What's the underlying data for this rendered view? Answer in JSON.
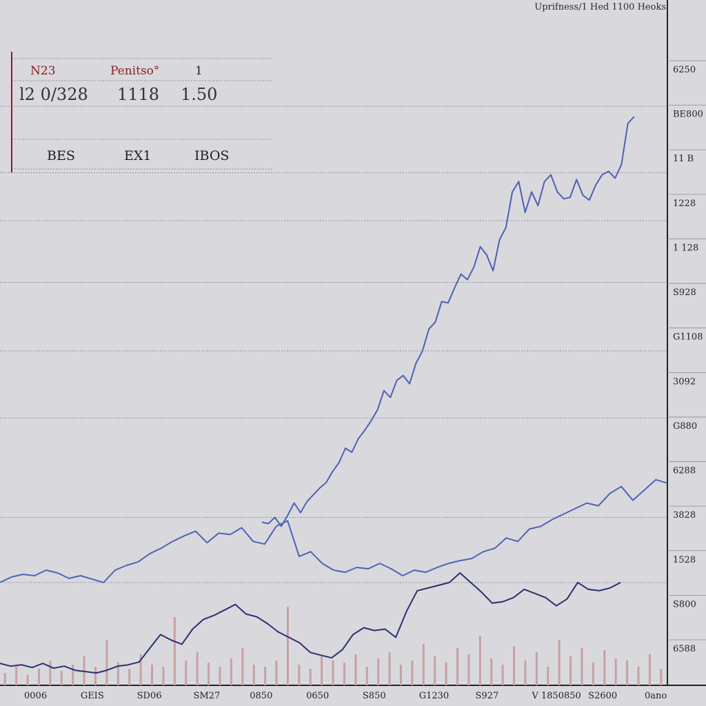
{
  "title": "Uprifness/1 Hed 1100 Heoks",
  "info_panel": {
    "row1": [
      "N23",
      "Penitso°",
      "1"
    ],
    "row2": [
      "l2 0/328",
      "1118",
      "1.50"
    ],
    "row3": [
      "BES",
      "EX1",
      "IBOS"
    ]
  },
  "colors": {
    "background": "#d9d8dd",
    "line_upper": "#4a61b4",
    "line_middle": "#4d63b5",
    "line_lower": "#28306f",
    "volume": "#c9a0a0",
    "red_accent": "#8a1e22"
  },
  "chart_data": {
    "type": "line",
    "title": "Uprifness/1 Hed 1100 Heoks",
    "xlabel": "",
    "ylabel": "",
    "x_ticks": [
      "0006",
      "GEIS",
      "SD06",
      "SM27",
      "0850",
      "0650",
      "S850",
      "G1230",
      "S927",
      "V 1850850",
      "S2600",
      "0ano"
    ],
    "y_ticks": [
      "6250",
      "BE800",
      "11 B",
      "1228",
      "1 128",
      "S928",
      "G1108",
      "3092",
      "G880",
      "6288",
      "3828",
      "1528",
      "S800",
      "6588"
    ],
    "grid": true,
    "series": [
      {
        "values": [
          238,
          236,
          245,
          232,
          248,
          266,
          252,
          268,
          278,
          288,
          296,
          312,
          325,
          346,
          340,
          360,
          372,
          386,
          402,
          430,
          420,
          445,
          452,
          440,
          470,
          488,
          520,
          530,
          560,
          558,
          580,
          600,
          592,
          610,
          640,
          628,
          605,
          650,
          668,
          720,
          735,
          690,
          720,
          700,
          735,
          745,
          720,
          710,
          712,
          738,
          715,
          708,
          730,
          745,
          750,
          740,
          760,
          820,
          830
        ]
      },
      {
        "values": [
          150,
          158,
          162,
          160,
          168,
          164,
          156,
          160,
          155,
          150,
          168,
          175,
          180,
          192,
          200,
          210,
          218,
          225,
          208,
          222,
          220,
          230,
          210,
          206,
          232,
          240,
          188,
          195,
          178,
          168,
          165,
          172,
          170,
          178,
          170,
          160,
          168,
          165,
          172,
          178,
          182,
          185,
          195,
          200,
          215,
          210,
          228,
          232,
          242,
          250,
          258,
          266,
          262,
          280,
          290,
          270,
          285,
          300,
          295
        ]
      },
      {
        "values": [
          32,
          28,
          30,
          26,
          32,
          25,
          28,
          22,
          20,
          18,
          22,
          28,
          30,
          34,
          54,
          74,
          66,
          60,
          82,
          96,
          102,
          110,
          118,
          104,
          100,
          90,
          78,
          70,
          62,
          48,
          44,
          40,
          52,
          74,
          84,
          80,
          82,
          70,
          108,
          138,
          142,
          146,
          150,
          164,
          150,
          136,
          120,
          122,
          128,
          140,
          134,
          128,
          116,
          126,
          150,
          140,
          138,
          142,
          150
        ]
      }
    ],
    "volume": [
      6,
      9,
      5,
      8,
      12,
      7,
      10,
      14,
      9,
      22,
      11,
      8,
      15,
      10,
      9,
      33,
      12,
      16,
      11,
      9,
      13,
      18,
      10,
      9,
      12,
      38,
      10,
      8,
      14,
      12,
      11,
      15,
      9,
      13,
      16,
      10,
      12,
      20,
      14,
      11,
      18,
      15,
      24,
      13,
      10,
      19,
      12,
      16,
      9,
      22,
      14,
      18,
      11,
      17,
      13,
      12,
      9,
      15,
      8
    ]
  }
}
